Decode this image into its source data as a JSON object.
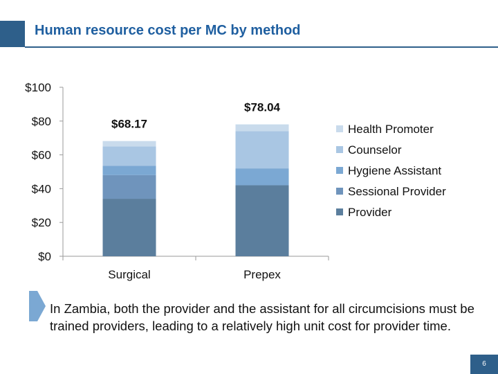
{
  "slide": {
    "title": "Human resource cost per MC by method",
    "body_text": "In Zambia, both the provider and the assistant for all circumcisions must be trained providers, leading to a relatively high unit cost for provider time.",
    "page_number": "6",
    "accent_color": "#2E5F8A"
  },
  "chart_data": {
    "type": "bar",
    "stacked": true,
    "title": "",
    "xlabel": "",
    "ylabel": "",
    "categories": [
      "Surgical",
      "Prepex"
    ],
    "ylim": [
      0,
      100
    ],
    "yticks": [
      0,
      20,
      40,
      60,
      80,
      100
    ],
    "ytick_labels": [
      "$0",
      "$20",
      "$40",
      "$60",
      "$80",
      "$100"
    ],
    "series": [
      {
        "name": "Provider",
        "values": [
          34,
          42
        ],
        "color": "#5B7E9D"
      },
      {
        "name": "Sessional Provider",
        "values": [
          14,
          0
        ],
        "color": "#6F94BC"
      },
      {
        "name": "Hygiene Assistant",
        "values": [
          5.5,
          10
        ],
        "color": "#7BA8D3"
      },
      {
        "name": "Counselor",
        "values": [
          11.5,
          22
        ],
        "color": "#A9C6E3"
      },
      {
        "name": "Health Promoter",
        "values": [
          3.17,
          4.04
        ],
        "color": "#C9DBEC"
      }
    ],
    "totals": [
      68.17,
      78.04
    ],
    "total_labels": [
      "$68.17",
      "$78.04"
    ],
    "legend_order": [
      "Health Promoter",
      "Counselor",
      "Hygiene Assistant",
      "Sessional Provider",
      "Provider"
    ],
    "legend_position": "right",
    "grid": false
  }
}
